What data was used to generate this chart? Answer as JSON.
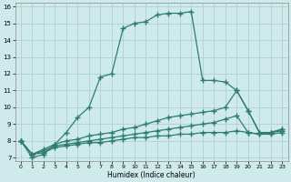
{
  "xlabel": "Humidex (Indice chaleur)",
  "bg_color": "#ceeaea",
  "grid_color": "#b0d0d0",
  "line_color": "#2d7d6e",
  "xlim": [
    -0.5,
    23.5
  ],
  "ylim": [
    6.8,
    16.2
  ],
  "xticks": [
    0,
    1,
    2,
    3,
    4,
    5,
    6,
    7,
    8,
    9,
    10,
    11,
    12,
    13,
    14,
    15,
    16,
    17,
    18,
    19,
    20,
    21,
    22,
    23
  ],
  "yticks": [
    7,
    8,
    9,
    10,
    11,
    12,
    13,
    14,
    15,
    16
  ],
  "line1_x": [
    0,
    1,
    2,
    3,
    4,
    5,
    6,
    7,
    8,
    9,
    10,
    11,
    12,
    13,
    14,
    15,
    16,
    17,
    18,
    19,
    20,
    21,
    22,
    23
  ],
  "line1_y": [
    8.0,
    7.0,
    7.2,
    7.8,
    8.5,
    9.4,
    10.0,
    11.8,
    12.0,
    14.7,
    15.0,
    15.1,
    15.5,
    15.6,
    15.6,
    15.7,
    11.6,
    11.6,
    11.5,
    11.0,
    9.8,
    8.5,
    8.5,
    8.7
  ],
  "line2_x": [
    0,
    1,
    2,
    3,
    4,
    5,
    6,
    7,
    8,
    9,
    10,
    11,
    12,
    13,
    14,
    15,
    16,
    17,
    18,
    19,
    20,
    21,
    22,
    23
  ],
  "line2_y": [
    8.0,
    7.2,
    7.5,
    7.8,
    8.0,
    8.1,
    8.3,
    8.4,
    8.5,
    8.7,
    8.8,
    9.0,
    9.2,
    9.4,
    9.5,
    9.6,
    9.7,
    9.8,
    10.0,
    11.0,
    9.8,
    8.5,
    8.5,
    8.7
  ],
  "line3_x": [
    0,
    1,
    2,
    3,
    4,
    5,
    6,
    7,
    8,
    9,
    10,
    11,
    12,
    13,
    14,
    15,
    16,
    17,
    18,
    19,
    20,
    21,
    22,
    23
  ],
  "line3_y": [
    8.0,
    7.2,
    7.4,
    7.7,
    7.8,
    7.9,
    8.0,
    8.1,
    8.2,
    8.3,
    8.4,
    8.5,
    8.6,
    8.7,
    8.8,
    8.9,
    9.0,
    9.1,
    9.3,
    9.5,
    8.5,
    8.4,
    8.5,
    8.6
  ],
  "line4_x": [
    0,
    1,
    2,
    3,
    4,
    5,
    6,
    7,
    8,
    9,
    10,
    11,
    12,
    13,
    14,
    15,
    16,
    17,
    18,
    19,
    20,
    21,
    22,
    23
  ],
  "line4_y": [
    8.0,
    7.2,
    7.3,
    7.6,
    7.7,
    7.8,
    7.9,
    7.9,
    8.0,
    8.1,
    8.2,
    8.2,
    8.3,
    8.3,
    8.4,
    8.4,
    8.5,
    8.5,
    8.5,
    8.6,
    8.5,
    8.4,
    8.4,
    8.5
  ]
}
